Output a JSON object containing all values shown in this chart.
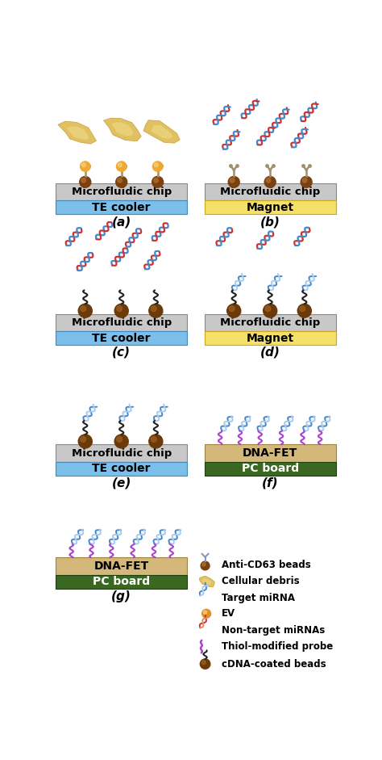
{
  "fig_width": 4.74,
  "fig_height": 9.41,
  "dpi": 100,
  "chip_color": "#c8c8c8",
  "chip_edge": "#888888",
  "te_color": "#7bbfea",
  "te_edge": "#4488bb",
  "magnet_color": "#f5e06a",
  "magnet_edge": "#c8a820",
  "dna_fet_color": "#d4b87a",
  "dna_fet_edge": "#a08040",
  "pc_board_color": "#3a6820",
  "pc_board_edge": "#1a4010",
  "bead_color_dark": "#7a4010",
  "bead_color_light": "#b07030",
  "ev_color": "#f0a830",
  "ev_color2": "#c88020",
  "debris_color1": "#c8a040",
  "debris_color2": "#e0c060",
  "target_mirna_blue": "#4488cc",
  "target_mirna_light": "#aaccee",
  "nontarget_red": "#cc3333",
  "nontarget_red2": "#ee8866",
  "cdna_probe_dark": "#222222",
  "thiol_purple": "#aa44cc",
  "thiol_purple2": "#dd88ee",
  "antibody_color": "#8899aa",
  "antibody_color2": "#cc9966",
  "panel_labels": [
    "(a)",
    "(b)",
    "(c)",
    "(d)",
    "(e)",
    "(f)",
    "(g)"
  ],
  "chip_labels": [
    "Microfluidic chip",
    "Microfluidic chip",
    "Microfluidic chip",
    "Microfluidic chip",
    "Microfluidic chip",
    "DNA-FET",
    "DNA-FET"
  ],
  "base_labels": [
    "TE cooler",
    "Magnet",
    "TE cooler",
    "Magnet",
    "TE cooler",
    "PC board",
    "PC board"
  ],
  "legend_items": [
    "Anti-CD63 beads",
    "Cellular debris",
    "Target miRNA",
    "EV",
    "Non-target miRNAs",
    "Thiol-modified probe",
    "cDNA-coated beads"
  ]
}
